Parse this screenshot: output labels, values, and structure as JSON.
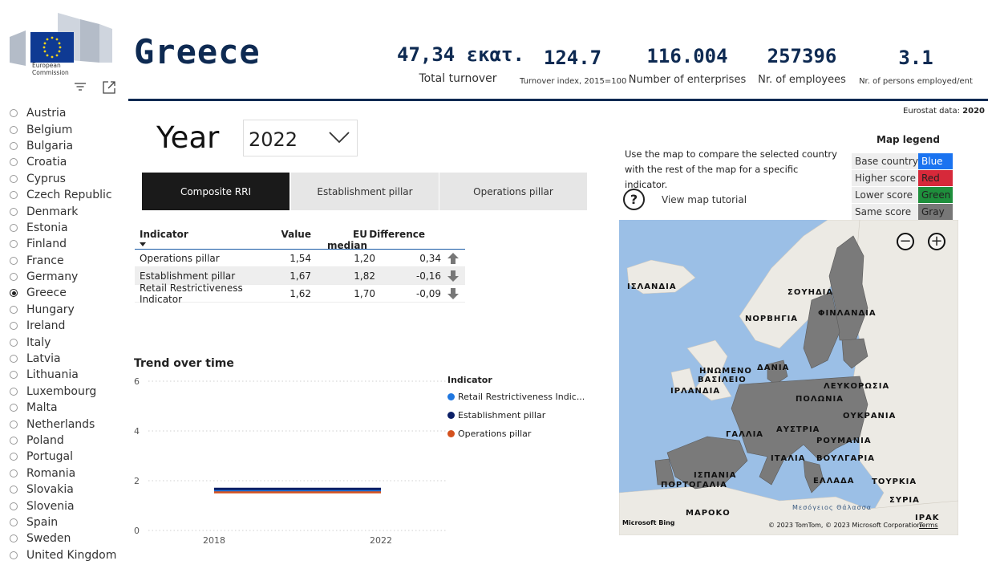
{
  "logo": {
    "caption_line1": "European",
    "caption_line2": "Commission"
  },
  "toolbar": {
    "filter_icon": "filter-icon",
    "focus_icon": "focus-mode-icon"
  },
  "countries": [
    "Austria",
    "Belgium",
    "Bulgaria",
    "Croatia",
    "Cyprus",
    "Czech Republic",
    "Denmark",
    "Estonia",
    "Finland",
    "France",
    "Germany",
    "Greece",
    "Hungary",
    "Ireland",
    "Italy",
    "Latvia",
    "Lithuania",
    "Luxembourg",
    "Malta",
    "Netherlands",
    "Poland",
    "Portugal",
    "Romania",
    "Slovakia",
    "Slovenia",
    "Spain",
    "Sweden",
    "United Kingdom"
  ],
  "selected_country": "Greece",
  "header": {
    "country": "Greece",
    "kpis": [
      {
        "value": "47,34 εκατ.",
        "label": "Total turnover"
      },
      {
        "value": "124.7",
        "label": "Turnover index, 2015=100"
      },
      {
        "value": "116.004",
        "label": "Number of enterprises"
      },
      {
        "value": "257396",
        "label": "Nr. of employees"
      },
      {
        "value": "3.1",
        "label": "Nr. of persons employed/ent"
      }
    ],
    "source_label": "Eurostat data:",
    "source_year": "2020",
    "accent_color": "#0e2a52"
  },
  "year": {
    "label": "Year",
    "selected": "2022"
  },
  "tabs": [
    {
      "label": "Composite RRI",
      "active": true
    },
    {
      "label": "Establishment pillar",
      "active": false
    },
    {
      "label": "Operations pillar",
      "active": false
    }
  ],
  "table": {
    "headers": [
      "Indicator",
      "Value",
      "EU median",
      "Difference"
    ],
    "rows": [
      {
        "indicator": "Operations pillar",
        "value": "1,54",
        "median": "1,20",
        "diff": "0,34",
        "trend": "up"
      },
      {
        "indicator": "Establishment pillar",
        "value": "1,67",
        "median": "1,82",
        "diff": "-0,16",
        "trend": "down"
      },
      {
        "indicator": "Retail Restrictiveness Indicator",
        "value": "1,62",
        "median": "1,70",
        "diff": "-0,09",
        "trend": "down"
      }
    ]
  },
  "trend": {
    "title": "Trend over time",
    "legend_title": "Indicator",
    "legend": [
      {
        "name": "Retail Restrictiveness Indic...",
        "color": "#1f77e0"
      },
      {
        "name": "Establishment pillar",
        "color": "#0b1f66"
      },
      {
        "name": "Operations pillar",
        "color": "#d4511e"
      }
    ]
  },
  "chart_data": {
    "type": "line",
    "title": "Trend over time",
    "x": [
      "2018",
      "2022"
    ],
    "ylim": [
      0,
      6
    ],
    "yticks": [
      "0",
      "2",
      "4",
      "6"
    ],
    "grid": true,
    "legend_placement": "right",
    "series": [
      {
        "name": "Retail Restrictiveness Indicator",
        "values": [
          1.62,
          1.62
        ],
        "color": "#1f77e0"
      },
      {
        "name": "Establishment pillar",
        "values": [
          1.67,
          1.67
        ],
        "color": "#0b1f66"
      },
      {
        "name": "Operations pillar",
        "values": [
          1.54,
          1.54
        ],
        "color": "#d4511e"
      }
    ]
  },
  "map_panel": {
    "info": "Use the map to compare the selected country with the rest of the map for a specific indicator.",
    "tutorial": "View map tutorial",
    "legend_title": "Map legend",
    "legend": [
      {
        "label": "Base country",
        "value": "Blue",
        "color": "#1a73f0",
        "text_color": "#fff"
      },
      {
        "label": "Higher score",
        "value": "Red",
        "color": "#d6293a",
        "text_color": "#222"
      },
      {
        "label": "Lower score",
        "value": "Green",
        "color": "#1e8f3c",
        "text_color": "#222"
      },
      {
        "label": "Same score",
        "value": "Gray",
        "color": "#777777",
        "text_color": "#222"
      }
    ],
    "country_labels": [
      "ΙΣΛΑΝΔΙΑ",
      "ΣΟΥΗΔΙΑ",
      "ΝΟΡΒΗΓΙΑ",
      "ΦΙΝΛΑΝΔΙΑ",
      "ΗΝΩΜΕΝΟ",
      "ΒΑΣΙΛΕΙΟ",
      "ΔΑΝΙΑ",
      "ΙΡΛΑΝΔΙΑ",
      "ΛΕΥΚΟΡΩΣΙΑ",
      "ΠΟΛΩΝΙΑ",
      "ΟΥΚΡΑΝΙΑ",
      "ΓΑΛΛΙΑ",
      "ΑΥΣΤΡΙΑ",
      "ΡΟΥΜΑΝΙΑ",
      "ΙΤΑΛΙΑ",
      "ΒΟΥΛΓΑΡΙΑ",
      "ΙΣΠΑΝΙΑ",
      "ΠΟΡΤΟΓΑΛΙΑ",
      "ΕΛΛΑΔΑ",
      "ΤΟΥΡΚΙΑ",
      "ΣΥΡΙΑ",
      "ΜΑΡΟΚΟ",
      "ΙΡΑΚ"
    ],
    "sea_label": "Μεσόγειος Θάλασσα",
    "bing": "Microsoft Bing",
    "copyright": "© 2023 TomTom, © 2023 Microsoft Corporation",
    "terms": "Terms"
  }
}
